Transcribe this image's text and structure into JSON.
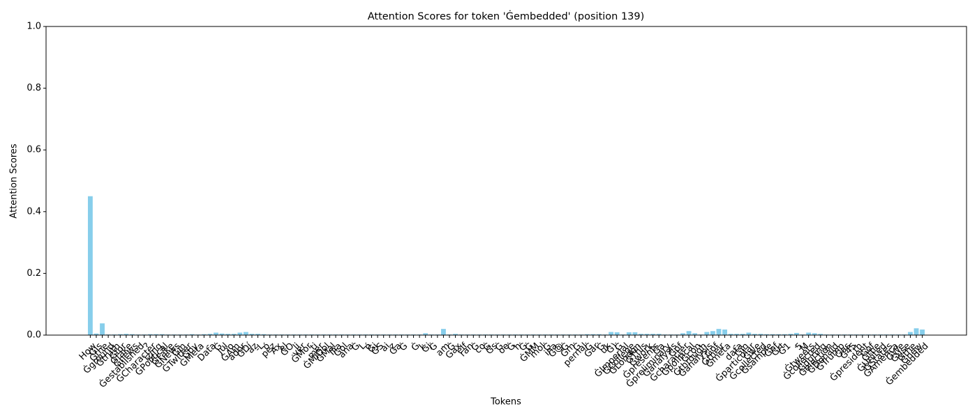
{
  "chart_data": {
    "type": "bar",
    "title": "Attention Scores for token 'Ġembedded' (position 139)",
    "x_label": "Tokens",
    "y_label": "Attention Scores",
    "color": "#87ceeb",
    "ylim": [
      0,
      1
    ],
    "yticks": [
      {
        "value": 0,
        "label": "0.0"
      },
      {
        "value": 0.2,
        "label": "0.2"
      },
      {
        "value": 0.4,
        "label": "0.4"
      },
      {
        "value": 0.6,
        "label": "0.6"
      },
      {
        "value": 0.8,
        "label": "0.8"
      },
      {
        "value": 1,
        "label": "1.0"
      }
    ],
    "categories": [
      "How",
      "Ġis",
      "Ġthe",
      "Ġground",
      "Ġtruth",
      "Ġfor",
      "Ġfake",
      "Ġnews",
      "Ġestablished",
      "?",
      "ĠCharacter",
      "izing",
      "ĠPolitical",
      "ĠFake",
      "ĠNews",
      "Ġin",
      "ĠTwitter",
      "Ġby",
      "ĠMeta",
      "-",
      "Data",
      "Ġ",
      "Jul",
      "io",
      "ĠAm",
      "ador",
      "ĠDí",
      "az",
      "-L",
      "ó",
      "pez",
      "Ax",
      "el",
      "ĠO",
      "li",
      "ver",
      "ĠMor",
      "ti",
      "mer",
      "ĠMIDol",
      "ĠMal",
      "Ilia",
      "Ġol",
      "ana",
      "Ġ",
      "L",
      "ó",
      "Ġj",
      "ĠS",
      "ai",
      "z",
      "Ġa",
      "Ġ",
      ".",
      "Ġ",
      "L",
      "Ġj",
      "Ġ",
      ".",
      "am",
      "Ġ",
      "Gax",
      "elf",
      "ran",
      "Ġ",
      "co",
      "Ġ",
      "Ġs",
      "Ġ",
      "oe",
      "Ġ",
      "h",
      "Ġ",
      "Ġ",
      "ĠMM",
      "mol",
      "Ġ",
      "ina",
      "Ġ@",
      "Ġ",
      "Ġm",
      "Ġ",
      "pernal",
      "Ġ",
      "Ġar",
      "Ġ",
      "uk",
      "Ġ)",
      "Ġ",
      "ĠImperial",
      "ĠCollege",
      "ĠLondon",
      "ĠThis",
      "Ġwork",
      "Ġpresents",
      "Ġa",
      "Ġpreliminary",
      "Ġanalysis",
      "Ġof",
      "Ġcharacter",
      "Ġpolitical",
      "Ġcon",
      "Ġthrough",
      "Ġanalysis",
      "Ġof",
      "Ġtheir",
      "Ġmeta",
      "-",
      "data",
      "Ġin",
      "Ġparticular",
      "Ġwe",
      "Ġcollected",
      "Ġsample",
      "Ġof",
      "Ġrt",
      "Ġ1",
      ".",
      "5",
      "M",
      "Ġtweets",
      "Ġcollected",
      "Ġduring",
      "Ġelection",
      "ĠDonald",
      "ĠTrump",
      "Ġas",
      "Ġ45",
      "th",
      "Ġpresident",
      "Ġof",
      "Ġthe",
      "ĠUnited",
      "ĠStates",
      "ĠAmerica",
      "ĠWe",
      "Ġuse",
      "Ġthe",
      "Ġnew",
      "Ġembedded"
    ],
    "values": [
      0.45,
      0.005,
      0.038,
      0.002,
      0.002,
      0.003,
      0.004,
      0.003,
      0.002,
      0.002,
      0.003,
      0.003,
      0.003,
      0.002,
      0.002,
      0.002,
      0.002,
      0.003,
      0.002,
      0.003,
      0.004,
      0.008,
      0.005,
      0.004,
      0.004,
      0.008,
      0.01,
      0.004,
      0.004,
      0.003,
      0.002,
      0.002,
      0.002,
      0.002,
      0.002,
      0.002,
      0.002,
      0.002,
      0.002,
      0.002,
      0.002,
      0.002,
      0.002,
      0.002,
      0.002,
      0.002,
      0.002,
      0.002,
      0.002,
      0.002,
      0.002,
      0.002,
      0.002,
      0.002,
      0.002,
      0.002,
      0.006,
      0.002,
      0.002,
      0.02,
      0.002,
      0.004,
      0.002,
      0.002,
      0.002,
      0.002,
      0.002,
      0.002,
      0.002,
      0.002,
      0.002,
      0.002,
      0.002,
      0.002,
      0.002,
      0.002,
      0.002,
      0.002,
      0.002,
      0.002,
      0.002,
      0.002,
      0.002,
      0.003,
      0.003,
      0.003,
      0.002,
      0.01,
      0.009,
      0.002,
      0.009,
      0.009,
      0.004,
      0.004,
      0.004,
      0.004,
      0.002,
      0.002,
      0.002,
      0.006,
      0.013,
      0.006,
      0.002,
      0.01,
      0.013,
      0.02,
      0.018,
      0.004,
      0.004,
      0.004,
      0.008,
      0.004,
      0.004,
      0.003,
      0.003,
      0.003,
      0.003,
      0.004,
      0.007,
      0.002,
      0.008,
      0.006,
      0.004,
      0.002,
      0.002,
      0.002,
      0.002,
      0.002,
      0.002,
      0.002,
      0.002,
      0.002,
      0.002,
      0.002,
      0.002,
      0.002,
      0.002,
      0.01,
      0.022,
      0.018
    ]
  }
}
